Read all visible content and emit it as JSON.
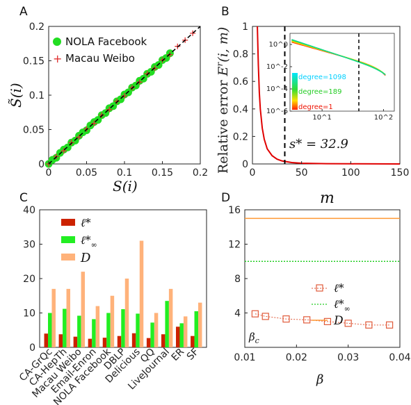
{
  "panels": {
    "A": "A",
    "B": "B",
    "C": "C",
    "D": "D"
  },
  "chart_data": [
    {
      "id": "A",
      "type": "scatter",
      "xlabel": "S(i)",
      "ylabel": "S̃(i)",
      "xlim": [
        0,
        0.2
      ],
      "ylim": [
        0,
        0.2
      ],
      "xticks": [
        "0",
        "0.05",
        "0.1",
        "0.15",
        "0.2"
      ],
      "yticks": [
        "0",
        "0.05",
        "0.1",
        "0.15",
        "0.2"
      ],
      "legend": [
        "NOLA Facebook",
        "Macau Weibo"
      ],
      "legend_position": "top-left",
      "series": [
        {
          "name": "NOLA Facebook",
          "marker": "circle",
          "color": "#22dd22",
          "x": [
            0.0,
            0.005,
            0.01,
            0.015,
            0.02,
            0.025,
            0.03,
            0.035,
            0.04,
            0.045,
            0.05,
            0.055,
            0.06,
            0.065,
            0.07,
            0.075,
            0.08,
            0.085,
            0.09,
            0.095,
            0.1,
            0.105,
            0.11,
            0.115,
            0.12,
            0.125,
            0.13,
            0.135,
            0.14,
            0.145,
            0.15,
            0.155,
            0.16
          ],
          "y": [
            0.0,
            0.006,
            0.009,
            0.016,
            0.021,
            0.024,
            0.031,
            0.034,
            0.041,
            0.046,
            0.049,
            0.056,
            0.061,
            0.064,
            0.071,
            0.074,
            0.081,
            0.084,
            0.091,
            0.094,
            0.101,
            0.104,
            0.111,
            0.114,
            0.121,
            0.124,
            0.131,
            0.134,
            0.141,
            0.144,
            0.151,
            0.154,
            0.161
          ]
        },
        {
          "name": "Macau Weibo",
          "marker": "plus",
          "color": "#e03030",
          "x": [
            0.0,
            0.01,
            0.02,
            0.03,
            0.04,
            0.05,
            0.06,
            0.07,
            0.08,
            0.09,
            0.1,
            0.11,
            0.12,
            0.13,
            0.14,
            0.15,
            0.16,
            0.17,
            0.18,
            0.19
          ],
          "y": [
            0.0,
            0.011,
            0.019,
            0.031,
            0.039,
            0.051,
            0.059,
            0.071,
            0.079,
            0.091,
            0.099,
            0.111,
            0.119,
            0.131,
            0.139,
            0.151,
            0.159,
            0.171,
            0.18,
            0.19
          ]
        }
      ],
      "reference_line": "y = x (dashed)"
    },
    {
      "id": "B",
      "type": "line",
      "xlabel": "m",
      "ylabel": "Relative error E^r(i,m)",
      "xlim": [
        0,
        150
      ],
      "ylim": [
        0,
        1
      ],
      "xticks": [
        "0",
        "50",
        "100",
        "150"
      ],
      "yticks": [
        "0",
        "0.2",
        "0.4",
        "0.6",
        "0.8",
        "1"
      ],
      "annotation": "s* = 32.9",
      "vline": 32.9,
      "series": [
        {
          "name": "",
          "color": "#e00000",
          "x": [
            5,
            6,
            7,
            8,
            10,
            12,
            15,
            20,
            25,
            30,
            40,
            50,
            75,
            100,
            150
          ],
          "y": [
            1.0,
            0.72,
            0.52,
            0.4,
            0.26,
            0.18,
            0.11,
            0.06,
            0.035,
            0.022,
            0.01,
            0.005,
            0.002,
            0.001,
            0.0
          ]
        }
      ],
      "inset": {
        "type": "line",
        "xscale": "log",
        "yscale": "log",
        "xlim": [
          3,
          150
        ],
        "ylim": [
          1e-06,
          10
        ],
        "xticks": [
          "10^1",
          "10^2"
        ],
        "yticks": [
          "10^0",
          "10^-2",
          "10^-4",
          "10^-6"
        ],
        "vline": 32.9,
        "colorbar_labels": [
          "degree=1098",
          "degree=189",
          "degree=1"
        ],
        "colorbar_colors": [
          "#00e5ff",
          "#33dd33",
          "#ff2000"
        ]
      }
    },
    {
      "id": "C",
      "type": "bar",
      "categories": [
        "CA-GrQc",
        "CA-HepTh",
        "Macau Weibo",
        "Email-Enron",
        "NOLA Facebook",
        "DBLP",
        "Delicious",
        "QQ",
        "LiveJournal",
        "ER",
        "SF"
      ],
      "ylim": [
        0,
        40
      ],
      "yticks": [
        "0",
        "10",
        "20",
        "30",
        "40"
      ],
      "legend": [
        "ℓ*",
        "ℓ*∞",
        "D"
      ],
      "legend_position": "top-left",
      "series": [
        {
          "name": "ℓ*",
          "color": "#cc2200",
          "values": [
            4.0,
            3.8,
            3.1,
            2.5,
            2.8,
            3.3,
            4.1,
            2.7,
            3.8,
            6.0,
            3.3
          ]
        },
        {
          "name": "ℓ*∞",
          "color": "#22ee22",
          "values": [
            10.0,
            11.2,
            9.2,
            8.2,
            10.0,
            11.1,
            9.8,
            7.2,
            13.5,
            7.0,
            10.5
          ]
        },
        {
          "name": "D",
          "color": "#ffb27a",
          "values": [
            17,
            17,
            22,
            12,
            15,
            20,
            31,
            10,
            17,
            9,
            13
          ]
        }
      ]
    },
    {
      "id": "D",
      "type": "line",
      "xlabel": "β",
      "xlim": [
        0.01,
        0.04
      ],
      "ylim": [
        0,
        16
      ],
      "xticks": [
        "0.01",
        "0.02",
        "0.03",
        "0.04"
      ],
      "yticks": [
        "4",
        "8",
        "12",
        "16"
      ],
      "annotation": "βc",
      "legend": [
        "ℓ*",
        "ℓ*∞",
        "D"
      ],
      "legend_position": "center-right",
      "series": [
        {
          "name": "ℓ*",
          "color": "#e05a3a",
          "marker": "square",
          "x": [
            0.012,
            0.014,
            0.018,
            0.022,
            0.026,
            0.03,
            0.034,
            0.038
          ],
          "y": [
            3.9,
            3.6,
            3.3,
            3.2,
            3.0,
            2.8,
            2.6,
            2.6
          ]
        },
        {
          "name": "ℓ*∞",
          "color": "#22cc22",
          "x": [
            0.01,
            0.04
          ],
          "y": [
            10.0,
            10.0
          ]
        },
        {
          "name": "D",
          "color": "#ff9933",
          "x": [
            0.01,
            0.04
          ],
          "y": [
            15.0,
            15.0
          ]
        }
      ]
    }
  ]
}
